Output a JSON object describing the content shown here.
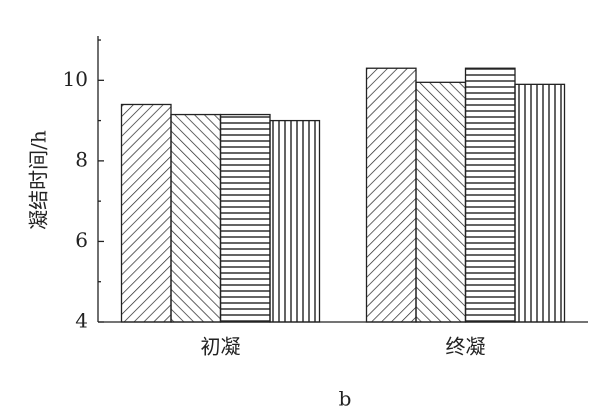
{
  "chart_data": {
    "type": "bar",
    "caption": "b",
    "y_label": "凝结时间/h",
    "categories": [
      "初凝",
      "终凝"
    ],
    "series": [
      {
        "color": "#222222",
        "pattern": "diag-up",
        "values": [
          9.4,
          10.3
        ]
      },
      {
        "color": "#222222",
        "pattern": "diag-down",
        "values": [
          9.15,
          9.95
        ]
      },
      {
        "color": "#222222",
        "pattern": "horizontal",
        "values": [
          9.15,
          10.3
        ]
      },
      {
        "color": "#222222",
        "pattern": "vertical",
        "values": [
          9.0,
          9.9
        ]
      }
    ],
    "ylim": [
      4,
      11.1
    ],
    "yticks": [
      4,
      6,
      8,
      10
    ],
    "minor_yticks": [
      5,
      7,
      9,
      11
    ],
    "grid": false
  }
}
